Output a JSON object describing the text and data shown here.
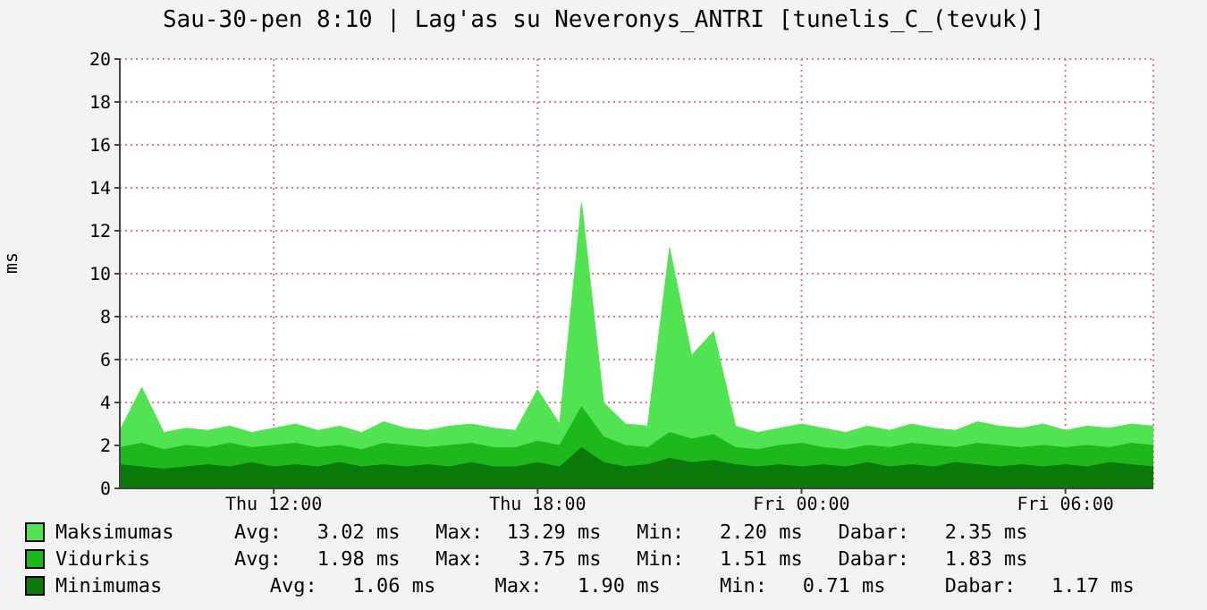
{
  "chart_data": {
    "type": "area",
    "title": "Sau-30-pen 8:10 | Lag'as su Neveronys_ANTRI [tunelis_C_(tevuk)]",
    "ylabel": "ms",
    "categories": [
      null,
      null,
      null,
      null,
      null,
      null,
      null,
      "Thu 12:00",
      null,
      null,
      null,
      null,
      null,
      null,
      null,
      null,
      null,
      null,
      null,
      "Thu 18:00",
      null,
      null,
      null,
      null,
      null,
      null,
      null,
      null,
      null,
      null,
      null,
      "Fri 00:00",
      null,
      null,
      null,
      null,
      null,
      null,
      null,
      null,
      null,
      null,
      null,
      "Fri 06:00",
      null,
      null,
      null,
      null
    ],
    "series": [
      {
        "name": "Maksimumas",
        "color": "#52e352",
        "values": [
          2.7,
          4.7,
          2.6,
          2.8,
          2.7,
          2.9,
          2.6,
          2.8,
          3.0,
          2.7,
          2.9,
          2.6,
          3.1,
          2.8,
          2.7,
          2.9,
          3.0,
          2.8,
          2.7,
          4.6,
          3.0,
          13.3,
          4.0,
          3.0,
          2.9,
          11.2,
          6.2,
          7.3,
          2.9,
          2.6,
          2.8,
          3.0,
          2.8,
          2.6,
          2.9,
          2.7,
          3.0,
          2.8,
          2.7,
          3.1,
          2.9,
          2.8,
          3.0,
          2.7,
          2.9,
          2.8,
          3.0,
          2.9
        ]
      },
      {
        "name": "Vidurkis",
        "color": "#1cb81c",
        "values": [
          1.9,
          2.1,
          1.8,
          2.0,
          1.9,
          2.1,
          1.9,
          2.0,
          2.1,
          1.9,
          2.0,
          1.8,
          2.1,
          2.0,
          1.9,
          2.0,
          2.1,
          1.9,
          1.9,
          2.2,
          2.0,
          3.8,
          2.4,
          2.0,
          1.9,
          2.6,
          2.3,
          2.5,
          1.9,
          1.8,
          2.0,
          2.1,
          1.9,
          1.8,
          2.0,
          1.9,
          2.1,
          2.0,
          1.9,
          2.1,
          2.0,
          1.9,
          2.0,
          1.9,
          2.0,
          1.9,
          2.1,
          2.0
        ]
      },
      {
        "name": "Minimumas",
        "color": "#0b7a0b",
        "values": [
          1.1,
          1.0,
          0.9,
          1.0,
          1.1,
          1.0,
          1.2,
          1.0,
          1.1,
          1.0,
          1.2,
          1.0,
          1.1,
          1.0,
          1.1,
          1.0,
          1.2,
          1.0,
          1.0,
          1.2,
          1.0,
          1.9,
          1.2,
          1.0,
          1.1,
          1.4,
          1.2,
          1.3,
          1.1,
          1.0,
          1.1,
          1.0,
          1.1,
          1.0,
          1.2,
          1.0,
          1.1,
          1.0,
          1.2,
          1.1,
          1.0,
          1.1,
          1.0,
          1.1,
          1.0,
          1.2,
          1.1,
          1.0
        ]
      }
    ],
    "ylim": [
      0,
      20
    ],
    "yticks": [
      0,
      2,
      4,
      6,
      8,
      10,
      12,
      14,
      16,
      18,
      20
    ],
    "grid": true,
    "legend": "bottom",
    "annotations": [
      "Avg:   3.02 ms   Max:  13.29 ms   Min:   2.20 ms   Dabar:   2.35 ms",
      "Avg:   1.98 ms   Max:   3.75 ms   Min:   1.51 ms   Dabar:   1.83 ms",
      "   Avg:   1.06 ms     Max:   1.90 ms     Min:   0.71 ms     Dabar:   1.17 ms"
    ]
  }
}
